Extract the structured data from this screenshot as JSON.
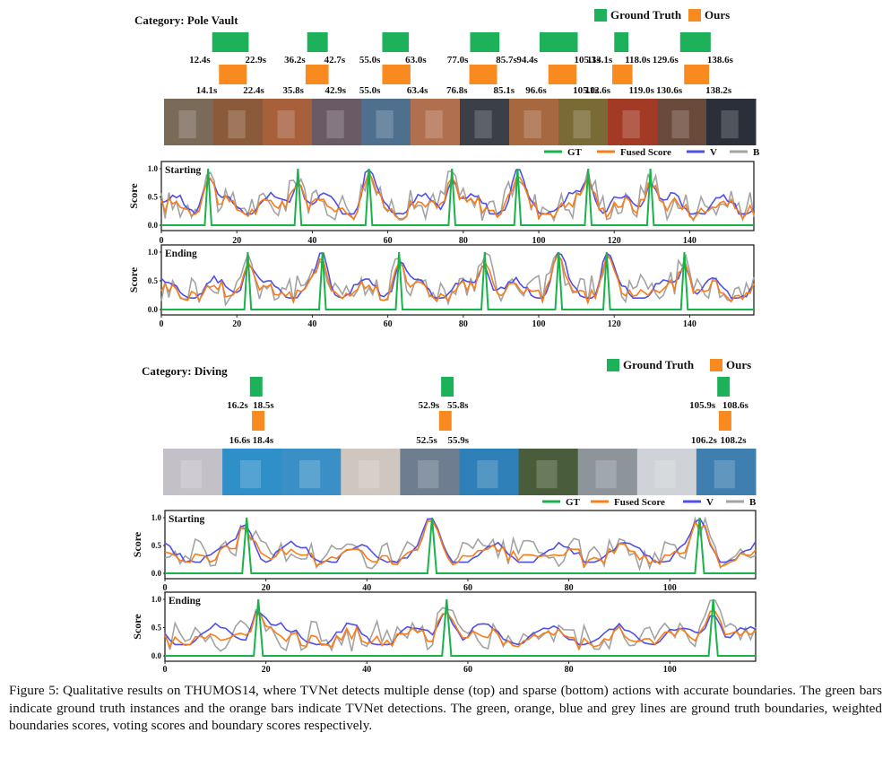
{
  "legend": {
    "ground_truth": "Ground Truth",
    "ours": "Ours",
    "gt": "GT",
    "fused": "Fused Score",
    "v": "V",
    "b": "B"
  },
  "colors": {
    "green": "#1ab34a",
    "orange": "#f97e17",
    "blue": "#5050e6",
    "grey": "#a3a3a3",
    "gt_bar": "#1db25a",
    "our_bar": "#f88a1f"
  },
  "panels": [
    {
      "category": "Category: Pole Vault",
      "gt": [
        [
          "12.4s",
          "22.9s"
        ],
        [
          "36.2s",
          "42.7s"
        ],
        [
          "55.0s",
          "63.0s"
        ],
        [
          "77.0s",
          "85.7s"
        ],
        [
          "94.4s",
          "105.3s"
        ],
        [
          "113.1s",
          "118.0s"
        ],
        [
          "129.6s",
          "138.6s"
        ]
      ],
      "ours": [
        [
          "14.1s",
          "22.4s"
        ],
        [
          "35.8s",
          "42.9s"
        ],
        [
          "55.0s",
          "63.4s"
        ],
        [
          "76.8s",
          "85.1s"
        ],
        [
          "96.6s",
          "105.0s"
        ],
        [
          "112.6s",
          "119.0s"
        ],
        [
          "130.6s",
          "138.2s"
        ]
      ],
      "frame_tints": [
        "#7a6a58",
        "#8a5a3a",
        "#a85f3c",
        "#6a5a66",
        "#4f6f8f",
        "#b07050",
        "#3a3f48",
        "#a5683f",
        "#7a6a35",
        "#a33a25",
        "#6a4a3a",
        "#2a2f3a"
      ]
    },
    {
      "category": "Category: Diving",
      "gt": [
        [
          "16.2s",
          "18.5s"
        ],
        [
          "52.9s",
          "55.8s"
        ],
        [
          "105.9s",
          "108.6s"
        ]
      ],
      "ours": [
        [
          "16.6s",
          "18.4s"
        ],
        [
          "52.5s",
          "55.9s"
        ],
        [
          "106.2s",
          "108.2s"
        ]
      ],
      "frame_tints": [
        "#c4c0c8",
        "#2f8fc8",
        "#3a90c6",
        "#cfc6bf",
        "#6e7e90",
        "#2f80b8",
        "#4a5d3a",
        "#8d959b",
        "#cfd2d6",
        "#3f7fb0"
      ]
    }
  ],
  "charts": {
    "starting": "Starting",
    "ending": "Ending",
    "ylabel": "Score",
    "yticks": [
      "0.0",
      "0.5",
      "1.0"
    ],
    "top_xticks": [
      "0",
      "20",
      "40",
      "60",
      "80",
      "100",
      "120",
      "140"
    ],
    "bottom_xticks": [
      "0",
      "20",
      "40",
      "60",
      "80",
      "100"
    ]
  },
  "chart_data": [
    {
      "type": "line",
      "title": "Starting",
      "ylabel": "Score",
      "xlim": [
        0,
        157
      ],
      "ylim": [
        0,
        1
      ],
      "gt_peaks": [
        12.4,
        36.2,
        55.0,
        77.0,
        94.4,
        113.1,
        129.6
      ],
      "series": [
        {
          "name": "GT"
        },
        {
          "name": "Fused Score"
        },
        {
          "name": "V"
        },
        {
          "name": "B"
        }
      ]
    },
    {
      "type": "line",
      "title": "Ending",
      "ylabel": "Score",
      "xlim": [
        0,
        157
      ],
      "ylim": [
        0,
        1
      ],
      "gt_peaks": [
        22.9,
        42.7,
        63.0,
        85.7,
        105.3,
        118.0,
        138.6
      ],
      "series": [
        {
          "name": "GT"
        },
        {
          "name": "Fused Score"
        },
        {
          "name": "V"
        },
        {
          "name": "B"
        }
      ]
    },
    {
      "type": "line",
      "title": "Starting",
      "ylabel": "Score",
      "xlim": [
        0,
        117
      ],
      "ylim": [
        0,
        1
      ],
      "gt_peaks": [
        16.2,
        52.9,
        105.9
      ],
      "series": [
        {
          "name": "GT"
        },
        {
          "name": "Fused Score"
        },
        {
          "name": "V"
        },
        {
          "name": "B"
        }
      ]
    },
    {
      "type": "line",
      "title": "Ending",
      "ylabel": "Score",
      "xlim": [
        0,
        117
      ],
      "ylim": [
        0,
        1
      ],
      "gt_peaks": [
        18.5,
        55.8,
        108.6
      ],
      "series": [
        {
          "name": "GT"
        },
        {
          "name": "Fused Score"
        },
        {
          "name": "V"
        },
        {
          "name": "B"
        }
      ]
    }
  ],
  "caption": {
    "label": "Figure 5:",
    "text": "Qualitative results on THUMOS14, where TVNet detects multiple dense (top) and sparse (bottom) actions with accurate boundaries. The green bars indicate ground truth instances and the orange bars indicate TVNet detections. The green, orange, blue and grey lines are ground truth boundaries, weighted boundaries scores, voting scores and boundary scores respectively."
  }
}
